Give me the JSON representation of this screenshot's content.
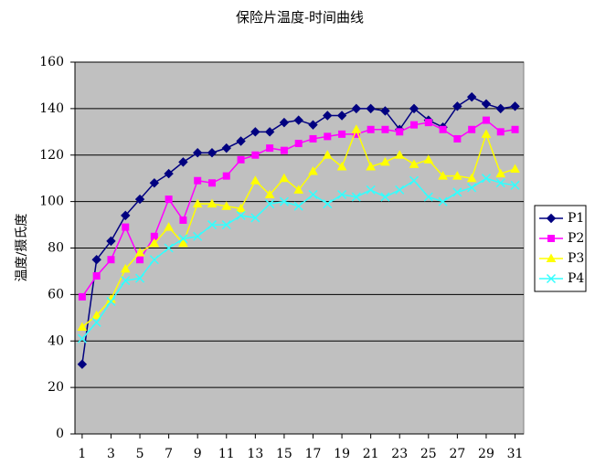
{
  "chart_data": {
    "type": "line",
    "title": "保险片温度-时间曲线",
    "y_label": "温度/摄氏度",
    "x": [
      1,
      2,
      3,
      4,
      5,
      6,
      7,
      8,
      9,
      10,
      11,
      12,
      13,
      14,
      15,
      16,
      17,
      18,
      19,
      20,
      21,
      22,
      23,
      24,
      25,
      26,
      27,
      28,
      29,
      30,
      31
    ],
    "xlim": [
      0.5,
      31.6
    ],
    "xticks": [
      1,
      3,
      5,
      7,
      9,
      11,
      13,
      15,
      17,
      19,
      21,
      23,
      25,
      27,
      29,
      31
    ],
    "ylim": [
      0,
      160
    ],
    "yticks": [
      0,
      20,
      40,
      60,
      80,
      100,
      120,
      140,
      160
    ],
    "grid": true,
    "legend": "right",
    "series": [
      {
        "name": "P1",
        "color": "#000080",
        "marker": "diamond",
        "values": [
          30,
          75,
          83,
          94,
          101,
          108,
          112,
          117,
          121,
          121,
          123,
          126,
          130,
          130,
          134,
          135,
          133,
          137,
          137,
          140,
          140,
          139,
          131,
          140,
          135,
          132,
          141,
          145,
          142,
          140,
          141
        ]
      },
      {
        "name": "P2",
        "color": "#ff00ff",
        "marker": "square",
        "values": [
          59,
          68,
          75,
          89,
          75,
          85,
          101,
          92,
          109,
          108,
          111,
          118,
          120,
          123,
          122,
          125,
          127,
          128,
          129,
          129,
          131,
          131,
          130,
          133,
          134,
          131,
          127,
          131,
          135,
          130,
          131
        ]
      },
      {
        "name": "P3",
        "color": "#ffff00",
        "marker": "triangle",
        "values": [
          46,
          51,
          58,
          71,
          78,
          82,
          89,
          82,
          99,
          99,
          98,
          97,
          109,
          103,
          110,
          105,
          113,
          120,
          115,
          131,
          115,
          117,
          120,
          116,
          118,
          111,
          111,
          110,
          129,
          112,
          114
        ]
      },
      {
        "name": "P4",
        "color": "#33ffff",
        "marker": "x",
        "values": [
          41,
          48,
          57,
          66,
          67,
          75,
          80,
          84,
          85,
          90,
          90,
          94,
          93,
          99,
          100,
          98,
          103,
          99,
          103,
          102,
          105,
          102,
          105,
          109,
          102,
          100,
          104,
          106,
          110,
          108,
          107
        ]
      }
    ]
  }
}
